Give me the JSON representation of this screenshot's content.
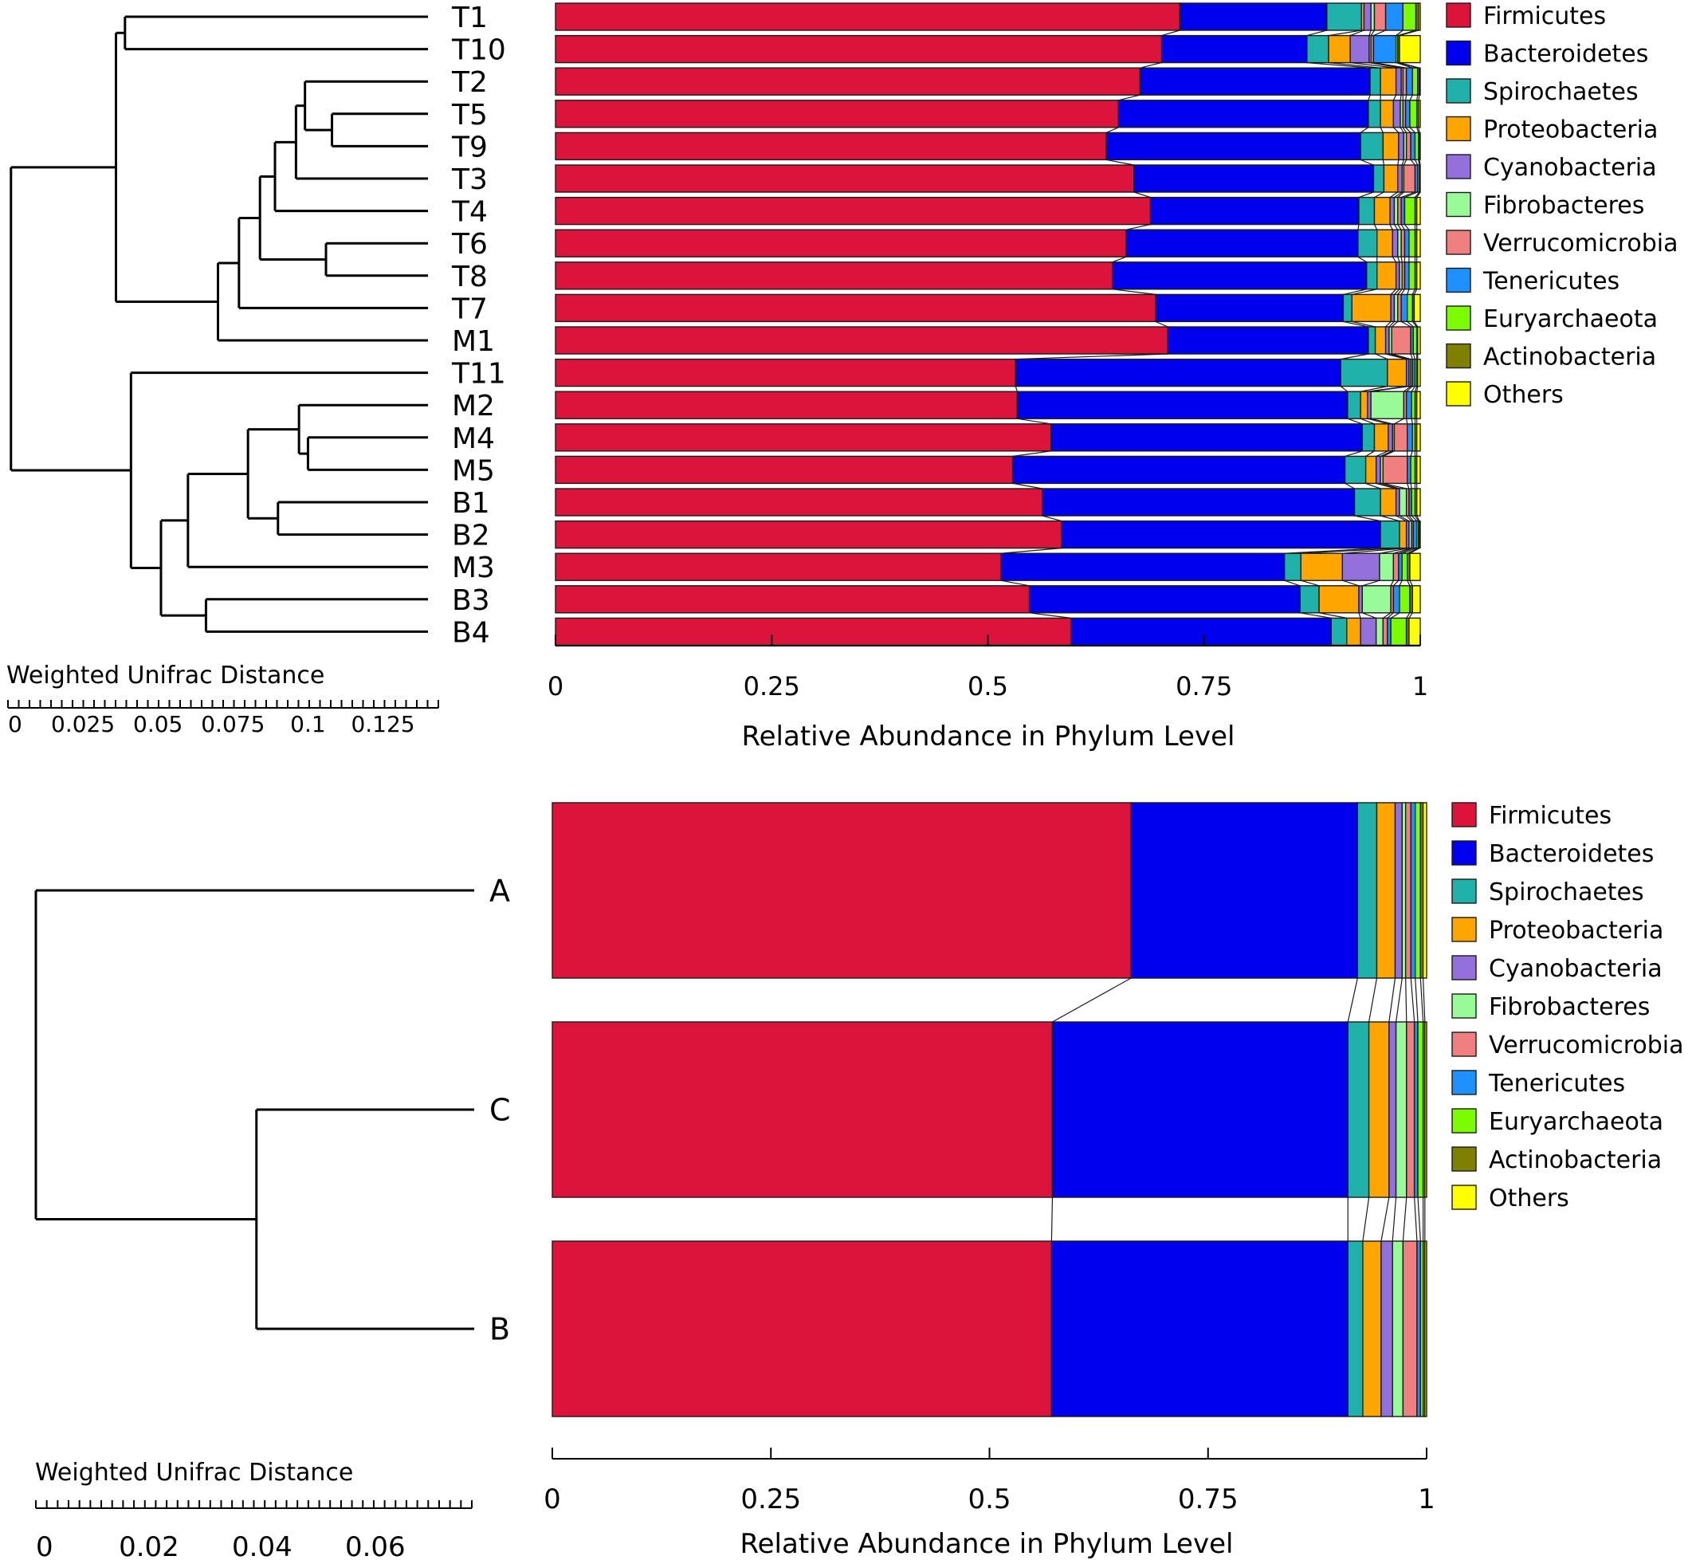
{
  "legend_items": [
    {
      "name": "Firmicutes",
      "color": "#dc143c"
    },
    {
      "name": "Bacteroidetes",
      "color": "#0000ee"
    },
    {
      "name": "Spirochaetes",
      "color": "#20b2aa"
    },
    {
      "name": "Proteobacteria",
      "color": "#ffa500"
    },
    {
      "name": "Cyanobacteria",
      "color": "#9370db"
    },
    {
      "name": "Fibrobacteres",
      "color": "#98fb98"
    },
    {
      "name": "Verrucomicrobia",
      "color": "#f08080"
    },
    {
      "name": "Tenericutes",
      "color": "#1e90ff"
    },
    {
      "name": "Euryarchaeota",
      "color": "#7cfc00"
    },
    {
      "name": "Actinobacteria",
      "color": "#808000"
    },
    {
      "name": "Others",
      "color": "#ffff00"
    }
  ],
  "chart_data": [
    {
      "type": "bar",
      "orientation": "horizontal",
      "stacked": true,
      "xlabel": "Relative Abundance in Phylum Level",
      "xlim": [
        0,
        1
      ],
      "xticks": [
        "0",
        "0.25",
        "0.5",
        "0.75",
        "1"
      ],
      "legend_position": "right",
      "categories": [
        "T1",
        "T10",
        "T2",
        "T5",
        "T9",
        "T3",
        "T4",
        "T6",
        "T8",
        "T7",
        "M1",
        "T11",
        "M2",
        "M4",
        "M5",
        "B1",
        "B2",
        "M3",
        "B3",
        "B4"
      ],
      "series": [
        {
          "name": "Firmicutes",
          "values": [
            0.722,
            0.701,
            0.676,
            0.651,
            0.637,
            0.669,
            0.688,
            0.66,
            0.644,
            0.694,
            0.708,
            0.532,
            0.534,
            0.573,
            0.529,
            0.563,
            0.585,
            0.515,
            0.548,
            0.596
          ]
        },
        {
          "name": "Bacteroidetes",
          "values": [
            0.17,
            0.168,
            0.266,
            0.289,
            0.294,
            0.277,
            0.241,
            0.268,
            0.294,
            0.217,
            0.232,
            0.376,
            0.382,
            0.36,
            0.384,
            0.361,
            0.369,
            0.328,
            0.313,
            0.301
          ]
        },
        {
          "name": "Spirochaetes",
          "values": [
            0.04,
            0.025,
            0.012,
            0.014,
            0.026,
            0.012,
            0.018,
            0.022,
            0.012,
            0.01,
            0.008,
            0.054,
            0.015,
            0.014,
            0.024,
            0.03,
            0.022,
            0.019,
            0.022,
            0.018
          ]
        },
        {
          "name": "Proteobacteria",
          "values": [
            0.003,
            0.025,
            0.018,
            0.015,
            0.018,
            0.016,
            0.018,
            0.018,
            0.022,
            0.045,
            0.012,
            0.022,
            0.008,
            0.016,
            0.012,
            0.018,
            0.008,
            0.048,
            0.046,
            0.016
          ]
        },
        {
          "name": "Cyanobacteria",
          "values": [
            0.008,
            0.022,
            0.006,
            0.008,
            0.006,
            0.005,
            0.005,
            0.006,
            0.004,
            0.004,
            0.004,
            0.003,
            0.004,
            0.005,
            0.005,
            0.004,
            0.003,
            0.043,
            0.004,
            0.018
          ]
        },
        {
          "name": "Fibrobacteres",
          "values": [
            0.004,
            0.002,
            0.002,
            0.003,
            0.003,
            0.002,
            0.004,
            0.004,
            0.003,
            0.004,
            0.003,
            0.002,
            0.038,
            0.002,
            0.003,
            0.008,
            0.003,
            0.016,
            0.033,
            0.008
          ]
        },
        {
          "name": "Verrucomicrobia",
          "values": [
            0.013,
            0.003,
            0.004,
            0.003,
            0.005,
            0.013,
            0.004,
            0.004,
            0.003,
            0.004,
            0.022,
            0.002,
            0.003,
            0.015,
            0.028,
            0.003,
            0.002,
            0.006,
            0.003,
            0.005
          ]
        },
        {
          "name": "Tenericutes",
          "values": [
            0.02,
            0.026,
            0.007,
            0.005,
            0.005,
            0.003,
            0.004,
            0.005,
            0.005,
            0.007,
            0.003,
            0.003,
            0.006,
            0.006,
            0.004,
            0.003,
            0.004,
            0.004,
            0.007,
            0.004
          ]
        },
        {
          "name": "Euryarchaeota",
          "values": [
            0.015,
            0.002,
            0.006,
            0.008,
            0.004,
            0.002,
            0.012,
            0.007,
            0.007,
            0.006,
            0.004,
            0.002,
            0.004,
            0.003,
            0.005,
            0.004,
            0.002,
            0.006,
            0.012,
            0.018
          ]
        },
        {
          "name": "Actinobacteria",
          "values": [
            0.003,
            0.002,
            0.002,
            0.002,
            0.001,
            0.001,
            0.002,
            0.002,
            0.002,
            0.002,
            0.001,
            0.001,
            0.002,
            0.002,
            0.002,
            0.002,
            0.001,
            0.003,
            0.003,
            0.003
          ]
        },
        {
          "name": "Others",
          "values": [
            0.002,
            0.024,
            0.001,
            0.002,
            0.001,
            0.0,
            0.004,
            0.004,
            0.004,
            0.007,
            0.003,
            0.003,
            0.004,
            0.004,
            0.004,
            0.004,
            0.001,
            0.012,
            0.009,
            0.013
          ]
        }
      ]
    },
    {
      "type": "bar",
      "orientation": "horizontal",
      "stacked": true,
      "xlabel": "Relative Abundance in Phylum Level",
      "xlim": [
        0,
        1
      ],
      "xticks": [
        "0",
        "0.25",
        "0.5",
        "0.75",
        "1"
      ],
      "legend_position": "right",
      "categories": [
        "A",
        "C",
        "B"
      ],
      "series": [
        {
          "name": "Firmicutes",
          "values": [
            0.662,
            0.572,
            0.571
          ]
        },
        {
          "name": "Bacteroidetes",
          "values": [
            0.259,
            0.338,
            0.339
          ]
        },
        {
          "name": "Spirochaetes",
          "values": [
            0.022,
            0.024,
            0.017
          ]
        },
        {
          "name": "Proteobacteria",
          "values": [
            0.021,
            0.023,
            0.021
          ]
        },
        {
          "name": "Cyanobacteria",
          "values": [
            0.008,
            0.008,
            0.013
          ]
        },
        {
          "name": "Fibrobacteres",
          "values": [
            0.004,
            0.012,
            0.012
          ]
        },
        {
          "name": "Verrucomicrobia",
          "values": [
            0.006,
            0.009,
            0.016
          ]
        },
        {
          "name": "Tenericutes",
          "values": [
            0.005,
            0.004,
            0.004
          ]
        },
        {
          "name": "Euryarchaeota",
          "values": [
            0.006,
            0.006,
            0.003
          ]
        },
        {
          "name": "Actinobacteria",
          "values": [
            0.003,
            0.002,
            0.002
          ]
        },
        {
          "name": "Others",
          "values": [
            0.004,
            0.002,
            0.002
          ]
        }
      ]
    }
  ],
  "dendrograms": [
    {
      "axis_label": "Weighted Unifrac Distance",
      "ticks": [
        "0",
        "0.025",
        "0.05",
        "0.075",
        "0.1",
        "0.125"
      ],
      "tick_values": [
        0,
        0.025,
        0.05,
        0.075,
        0.1,
        0.125
      ],
      "max_distance": 0.14,
      "clusters": [
        [
          [
            "T1",
            "T10"
          ],
          0.101
        ],
        [
          [
            "T5",
            "T9"
          ],
          0.032
        ],
        [
          [
            "T2",
            [
              "T5",
              "T9"
            ]
          ],
          0.041
        ],
        [
          [
            [
              "T2",
              [
                "T5",
                "T9"
              ]
            ],
            "T3"
          ],
          0.044
        ],
        [
          [
            [
              [
                "T2",
                [
                  "T5",
                  "T9"
                ]
              ],
              "T3"
            ],
            "T4"
          ],
          0.051
        ],
        [
          [
            "T6",
            "T8"
          ],
          0.034
        ],
        [
          [
            [
              [
                [
                  "T2",
                  [
                    "T5",
                    "T9"
                  ]
                ],
                "T3"
              ],
              "T4"
            ],
            [
              "T6",
              "T8"
            ]
          ],
          0.056
        ],
        [
          [
            [
              [
                [
                  [
                    "T2",
                    [
                      "T5",
                      "T9"
                    ]
                  ],
                  "T3"
                ],
                "T4"
              ],
              [
                "T6",
                "T8"
              ]
            ],
            "T7"
          ],
          0.063
        ],
        [
          [
            [
              [
                [
                  [
                    [
                      "T2",
                      [
                        "T5",
                        "T9"
                      ]
                    ],
                    "T3"
                  ],
                  "T4"
                ],
                [
                  "T6",
                  "T8"
                ]
              ],
              "T7"
            ],
            "M1"
          ],
          0.07
        ],
        [
          [
            [
              "T1",
              "T10"
            ],
            [
              [
                [
                  [
                    [
                      [
                        "T2",
                        [
                          "T5",
                          "T9"
                        ]
                      ],
                      "T3"
                    ],
                    "T4"
                  ],
                  [
                    "T6",
                    "T8"
                  ]
                ],
                "T7"
              ],
              "M1"
            ]
          ],
          0.104
        ],
        [
          [
            "M4",
            "M5"
          ],
          0.04
        ],
        [
          [
            "M2",
            [
              "M4",
              "M5"
            ]
          ],
          0.043
        ],
        [
          [
            "B1",
            "B2"
          ],
          0.05
        ],
        [
          [
            [
              "M2",
              [
                "M4",
                "M5"
              ]
            ],
            [
              "B1",
              "B2"
            ]
          ],
          0.06
        ],
        [
          [
            [
              [
                "M2",
                [
                  "M4",
                  "M5"
                ]
              ],
              [
                "B1",
                "B2"
              ]
            ],
            "M3"
          ],
          0.08
        ],
        [
          [
            "B3",
            "B4"
          ],
          0.074
        ],
        [
          [
            [
              [
                [
                  "M2",
                  [
                    "M4",
                    "M5"
                  ]
                ],
                [
                  "B1",
                  "B2"
                ]
              ],
              "M3"
            ],
            [
              "B3",
              "B4"
            ]
          ],
          0.089
        ],
        [
          [
            "T11",
            [
              [
                [
                  [
                    "M2",
                    [
                      "M4",
                      "M5"
                    ]
                  ],
                  [
                    "B1",
                    "B2"
                  ]
                ],
                "M3"
              ],
              [
                "B3",
                "B4"
              ]
            ]
          ],
          0.099
        ],
        [
          [
            [
              [
                "T1",
                "T10"
              ],
              [
                [
                  [
                    [
                      [
                        [
                          "T2",
                          [
                            "T5",
                            "T9"
                          ]
                        ],
                        "T3"
                      ],
                      "T4"
                    ],
                    [
                      "T6",
                      "T8"
                    ]
                  ],
                  "T7"
                ],
                "M1"
              ]
            ],
            [
              "T11",
              [
                [
                  [
                    [
                      "M2",
                      [
                        "M4",
                        "M5"
                      ]
                    ],
                    [
                      "B1",
                      "B2"
                    ]
                  ],
                  "M3"
                ],
                [
                  "B3",
                  "B4"
                ]
              ]
            ]
          ],
          0.139
        ]
      ]
    },
    {
      "axis_label": "Weighted Unifrac Distance",
      "ticks": [
        "0",
        "0.02",
        "0.04",
        "0.06"
      ],
      "tick_values": [
        0,
        0.02,
        0.04,
        0.06
      ],
      "max_distance": 0.0775,
      "clusters": [
        [
          [
            "C",
            "B"
          ],
          0.0385
        ],
        [
          [
            "A",
            [
              "C",
              "B"
            ]
          ],
          0.0775
        ]
      ]
    }
  ]
}
